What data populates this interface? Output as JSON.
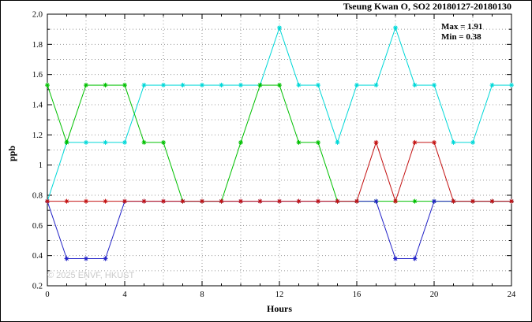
{
  "watermark": "© 2025 ENVF, HKUST",
  "chart_data": {
    "type": "line",
    "title": "Tseung Kwan O, SO2 20180127-20180130",
    "xlabel": "Hours",
    "ylabel": "ppb",
    "xlim": [
      0,
      24
    ],
    "ylim": [
      0.2,
      2.0
    ],
    "x_major_ticks": [
      0,
      4,
      8,
      12,
      16,
      20,
      24
    ],
    "x_tick_labels": [
      "0",
      "4",
      "8",
      "12",
      "16",
      "20",
      "24"
    ],
    "y_major_step": 0.2,
    "y_tick_labels": [
      "2.0",
      "1.8",
      "1.6",
      "1.4",
      "1.2",
      "1",
      "0.8",
      "0.6",
      "0.4",
      "0.2"
    ],
    "grid": {
      "style": "dotted",
      "x_step": 2,
      "y_step": 0.1,
      "color": "#989898"
    },
    "annotations": [
      "Max = 1.91",
      "Min = 0.38"
    ],
    "stats": {
      "max": 1.91,
      "min": 0.38
    },
    "x": [
      0,
      1,
      2,
      3,
      4,
      5,
      6,
      7,
      8,
      9,
      10,
      11,
      12,
      13,
      14,
      15,
      16,
      17,
      18,
      19,
      20,
      21,
      22,
      23,
      24
    ],
    "series": [
      {
        "name": "cyan-series",
        "color": "#00d8d8",
        "values": [
          0.76,
          1.15,
          1.15,
          1.15,
          1.15,
          1.53,
          1.53,
          1.53,
          1.53,
          1.53,
          1.53,
          1.53,
          1.91,
          1.53,
          1.53,
          1.15,
          1.53,
          1.53,
          1.91,
          1.53,
          1.53,
          1.15,
          1.15,
          1.53,
          1.53
        ]
      },
      {
        "name": "green-series",
        "color": "#00c000",
        "values": [
          1.53,
          1.15,
          1.53,
          1.53,
          1.53,
          1.15,
          1.15,
          0.76,
          0.76,
          0.76,
          1.15,
          1.53,
          1.53,
          1.15,
          1.15,
          0.76,
          0.76,
          0.76,
          0.76,
          0.76,
          0.76,
          0.76,
          0.76,
          0.76,
          0.76
        ]
      },
      {
        "name": "blue-series",
        "color": "#2424c8",
        "values": [
          0.76,
          0.38,
          0.38,
          0.38,
          0.76,
          0.76,
          0.76,
          0.76,
          0.76,
          0.76,
          0.76,
          0.76,
          0.76,
          0.76,
          0.76,
          0.76,
          0.76,
          0.76,
          0.38,
          0.38,
          0.76,
          0.76,
          0.76,
          0.76,
          0.76
        ]
      },
      {
        "name": "red-series",
        "color": "#c41414",
        "values": [
          0.76,
          0.76,
          0.76,
          0.76,
          0.76,
          0.76,
          0.76,
          0.76,
          0.76,
          0.76,
          0.76,
          0.76,
          0.76,
          0.76,
          0.76,
          0.76,
          0.76,
          1.15,
          0.76,
          1.15,
          1.15,
          0.76,
          0.76,
          0.76,
          0.76
        ]
      }
    ]
  }
}
